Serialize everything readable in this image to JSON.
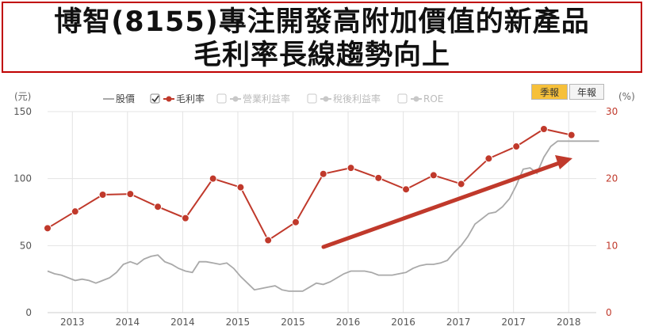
{
  "title": {
    "line1": "博智(8155)專注開發高附加價值的新產品",
    "line2": "毛利率長線趨勢向上"
  },
  "controls": {
    "quarterly": "季報",
    "annual": "年報"
  },
  "colors": {
    "price": "#a9a9a9",
    "gross_margin": "#c0392b",
    "arrow": "#c0392b",
    "disabled": "#c8c8c8"
  },
  "chart_data": {
    "type": "line",
    "left_axis_unit": "(元)",
    "right_axis_unit": "(%)",
    "left_ylim": [
      0,
      150
    ],
    "right_ylim": [
      0,
      30
    ],
    "left_ticks": [
      0,
      50,
      100,
      150
    ],
    "right_ticks": [
      0,
      10,
      20,
      30
    ],
    "x_tick_labels": [
      "2013",
      "2014",
      "2014",
      "2015",
      "2015",
      "2016",
      "2016",
      "2017",
      "2017",
      "2018"
    ],
    "grid": true,
    "legend": [
      {
        "label": "股價",
        "checked": false,
        "active": true
      },
      {
        "label": "毛利率",
        "checked": true,
        "active": true
      },
      {
        "label": "營業利益率",
        "checked": false,
        "active": false
      },
      {
        "label": "稅後利益率",
        "checked": false,
        "active": false
      },
      {
        "label": "ROE",
        "checked": false,
        "active": false
      }
    ],
    "series": [
      {
        "name": "毛利率",
        "axis": "right",
        "x": [
          0,
          1,
          2,
          3,
          4,
          5,
          6,
          7,
          8,
          9,
          10,
          11,
          12,
          13,
          14,
          15,
          16,
          17,
          18,
          19
        ],
        "values": [
          12.6,
          15.1,
          17.6,
          17.7,
          15.8,
          14.1,
          20.0,
          18.7,
          10.8,
          13.5,
          20.7,
          21.6,
          20.1,
          18.4,
          20.5,
          19.2,
          23.0,
          24.8,
          27.4,
          26.5
        ]
      },
      {
        "name": "股價",
        "axis": "left",
        "x": [
          0,
          0.25,
          0.5,
          0.75,
          1,
          1.25,
          1.5,
          1.75,
          2,
          2.25,
          2.5,
          2.75,
          3,
          3.25,
          3.5,
          3.75,
          4,
          4.25,
          4.5,
          4.75,
          5,
          5.25,
          5.5,
          5.75,
          6,
          6.25,
          6.5,
          6.75,
          7,
          7.25,
          7.5,
          7.75,
          8,
          8.25,
          8.5,
          8.75,
          9,
          9.25,
          9.5,
          9.75,
          10,
          10.25,
          10.5,
          10.75,
          11,
          11.25,
          11.5,
          11.75,
          12,
          12.25,
          12.5,
          12.75,
          13,
          13.25,
          13.5,
          13.75,
          14,
          14.25,
          14.5,
          14.75,
          15,
          15.25,
          15.5,
          15.75,
          16,
          16.25,
          16.5,
          16.75,
          17,
          17.25,
          17.5,
          17.75,
          18,
          18.25,
          18.5,
          18.75,
          19,
          19.25,
          19.5,
          19.75,
          20
        ],
        "values": [
          31,
          29,
          28,
          26,
          24,
          25,
          24,
          22,
          24,
          26,
          30,
          36,
          38,
          36,
          40,
          42,
          43,
          38,
          36,
          33,
          31,
          30,
          38,
          38,
          37,
          36,
          37,
          33,
          27,
          22,
          17,
          18,
          19,
          20,
          17,
          16,
          16,
          16,
          19,
          22,
          21,
          23,
          26,
          29,
          31,
          31,
          31,
          30,
          28,
          28,
          28,
          29,
          30,
          33,
          35,
          36,
          36,
          37,
          39,
          45,
          50,
          57,
          66,
          70,
          74,
          75,
          79,
          85,
          95,
          107,
          108,
          104,
          116,
          124,
          128,
          128,
          128,
          128,
          128,
          128,
          128
        ]
      }
    ]
  }
}
